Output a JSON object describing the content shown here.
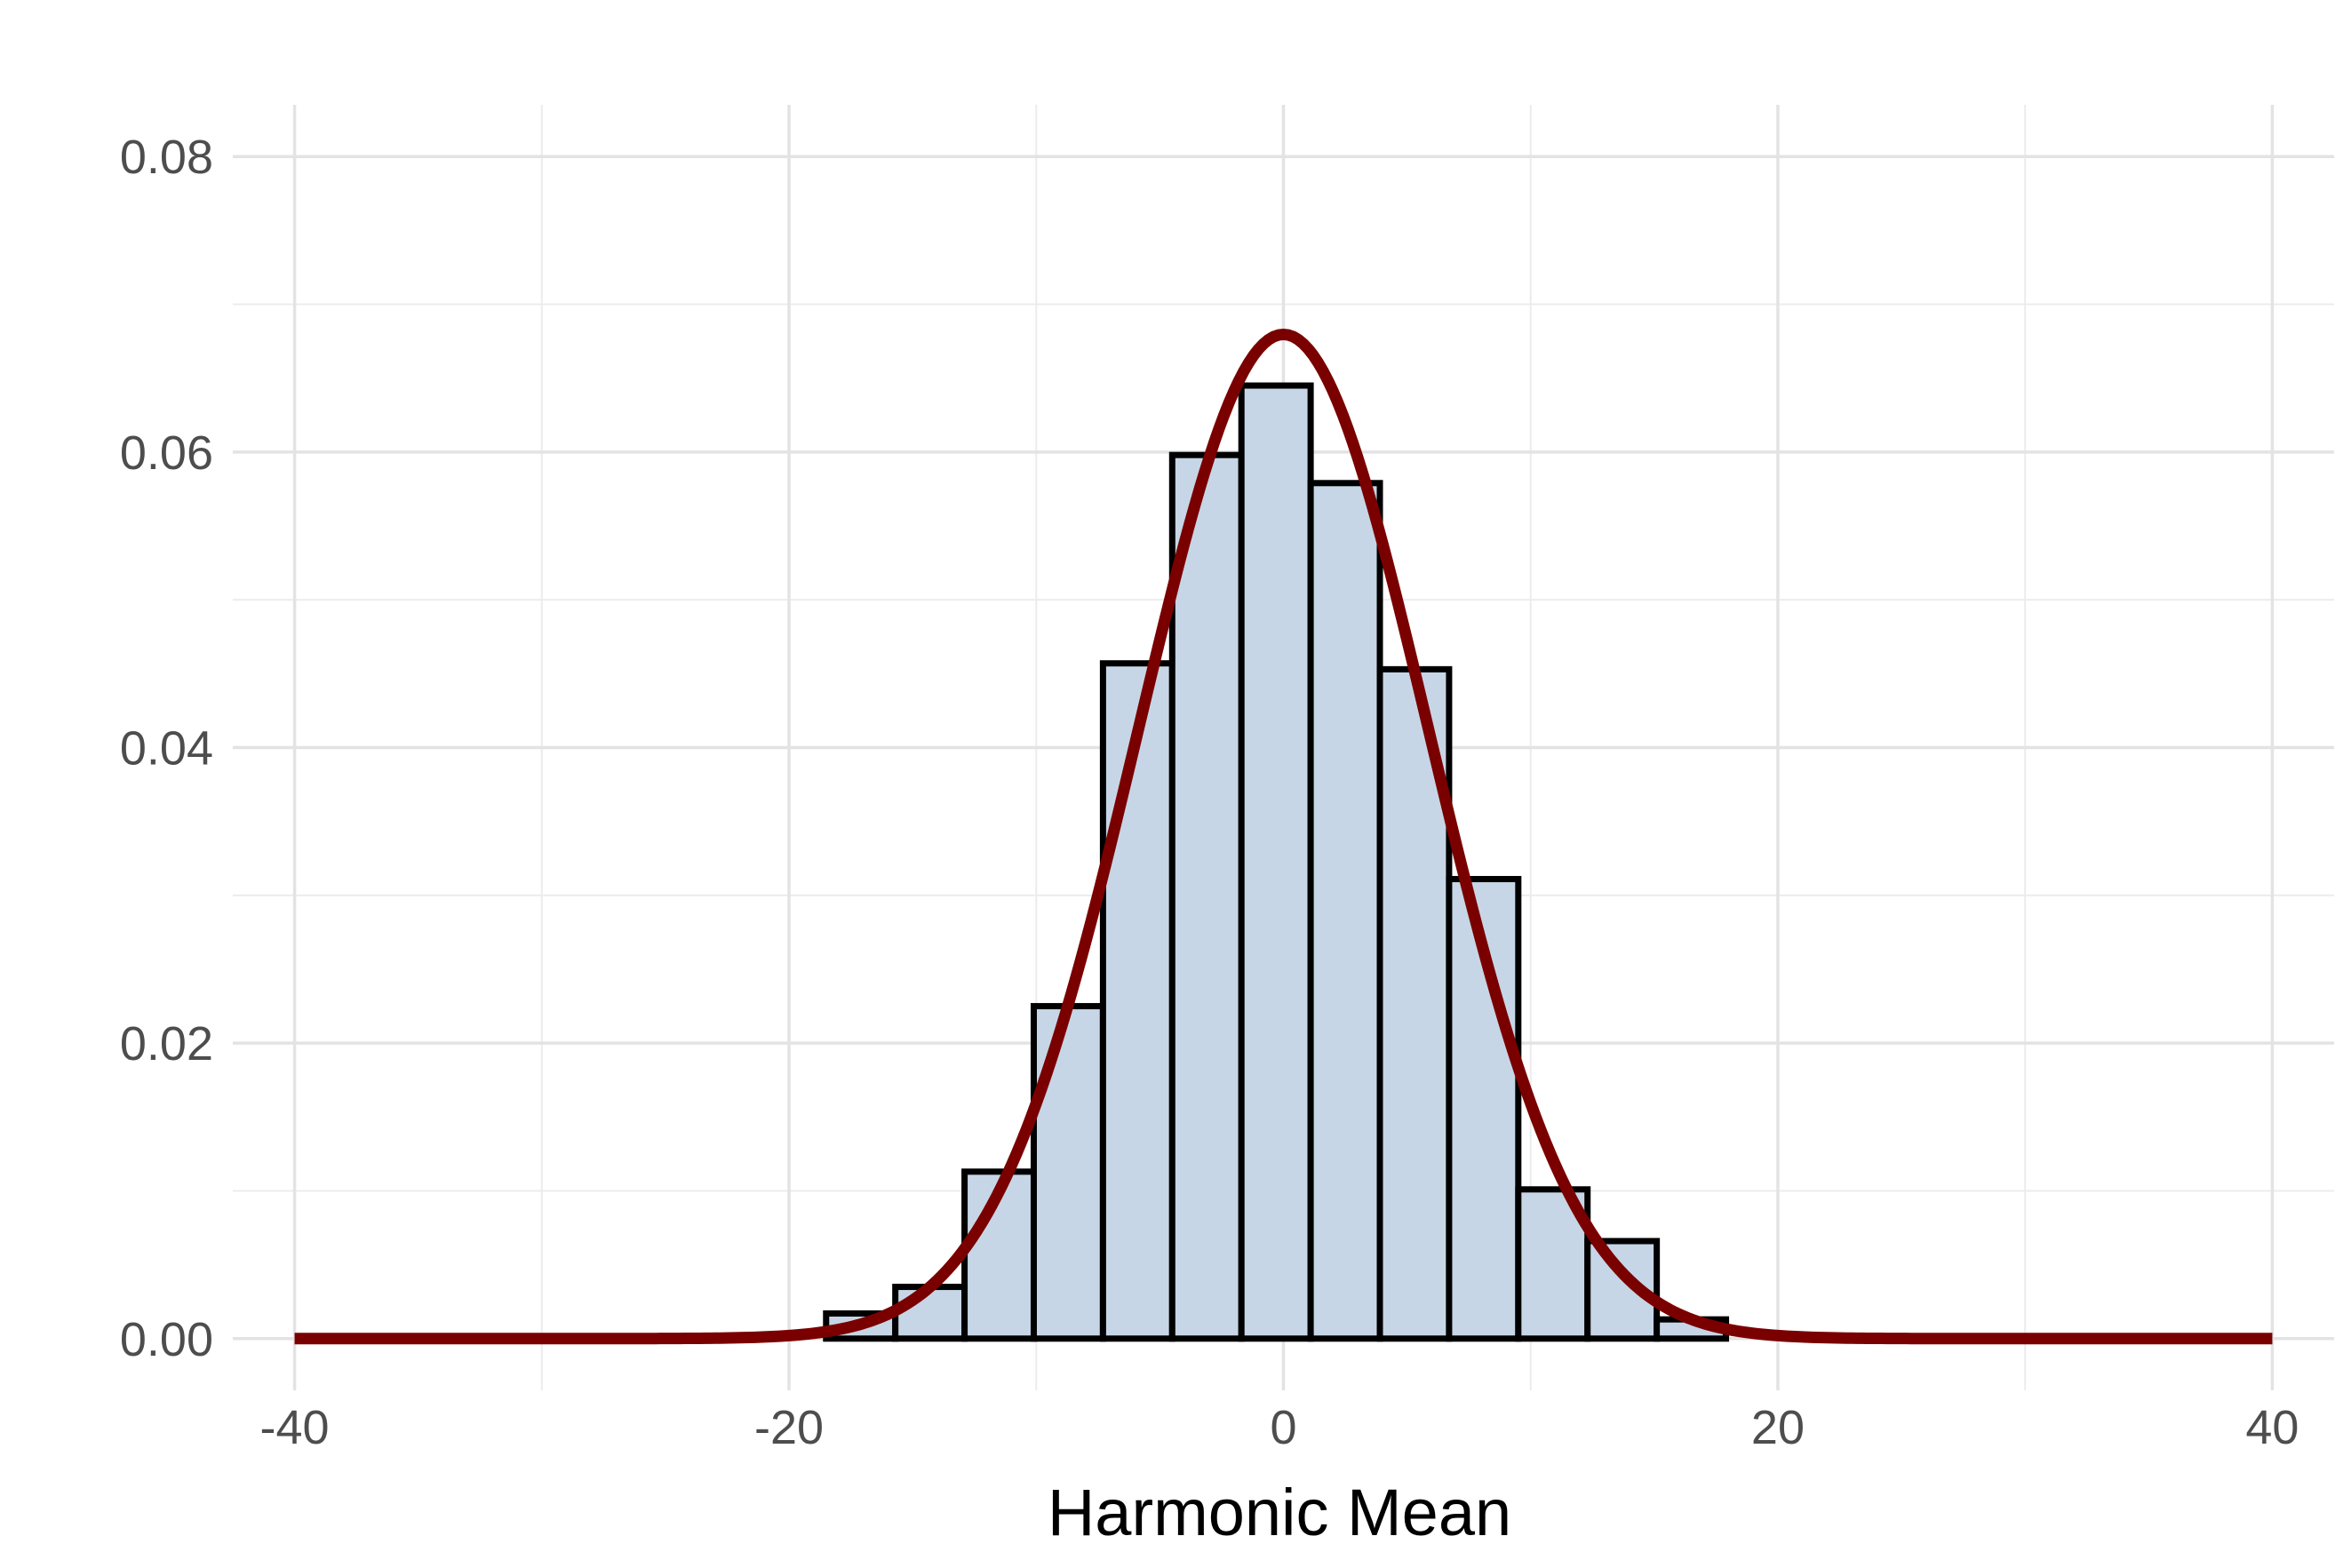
{
  "chart_data": {
    "type": "bar",
    "xlabel": "Harmonic Mean",
    "ylabel": "",
    "title": "",
    "xlim": [
      -42.5,
      42.5
    ],
    "ylim": [
      -0.0035,
      0.0835
    ],
    "xticks": [
      -40,
      -20,
      0,
      20,
      40
    ],
    "xtick_labels": [
      "-40",
      "-20",
      "0",
      "20",
      "40"
    ],
    "yticks": [
      0,
      0.02,
      0.04,
      0.06,
      0.08
    ],
    "ytick_labels": [
      "0.00",
      "0.02",
      "0.04",
      "0.06",
      "0.08"
    ],
    "grid": true,
    "histogram": {
      "bin_edges": [
        -18.5,
        -15.7,
        -12.9,
        -10.1,
        -7.3,
        -4.5,
        -1.7,
        1.1,
        3.9,
        6.7,
        9.5,
        12.3,
        15.1,
        17.9
      ],
      "density": [
        0.0017,
        0.0035,
        0.0113,
        0.0225,
        0.0457,
        0.0598,
        0.0645,
        0.0579,
        0.0453,
        0.0311,
        0.0101,
        0.0066,
        0.0013
      ],
      "fill": "#c6d6e6",
      "stroke": "#000000"
    },
    "density_curve": {
      "distribution": "normal",
      "mean": 0,
      "sd": 5.87,
      "x_range": [
        -40,
        40
      ],
      "color": "#7a0000"
    }
  }
}
